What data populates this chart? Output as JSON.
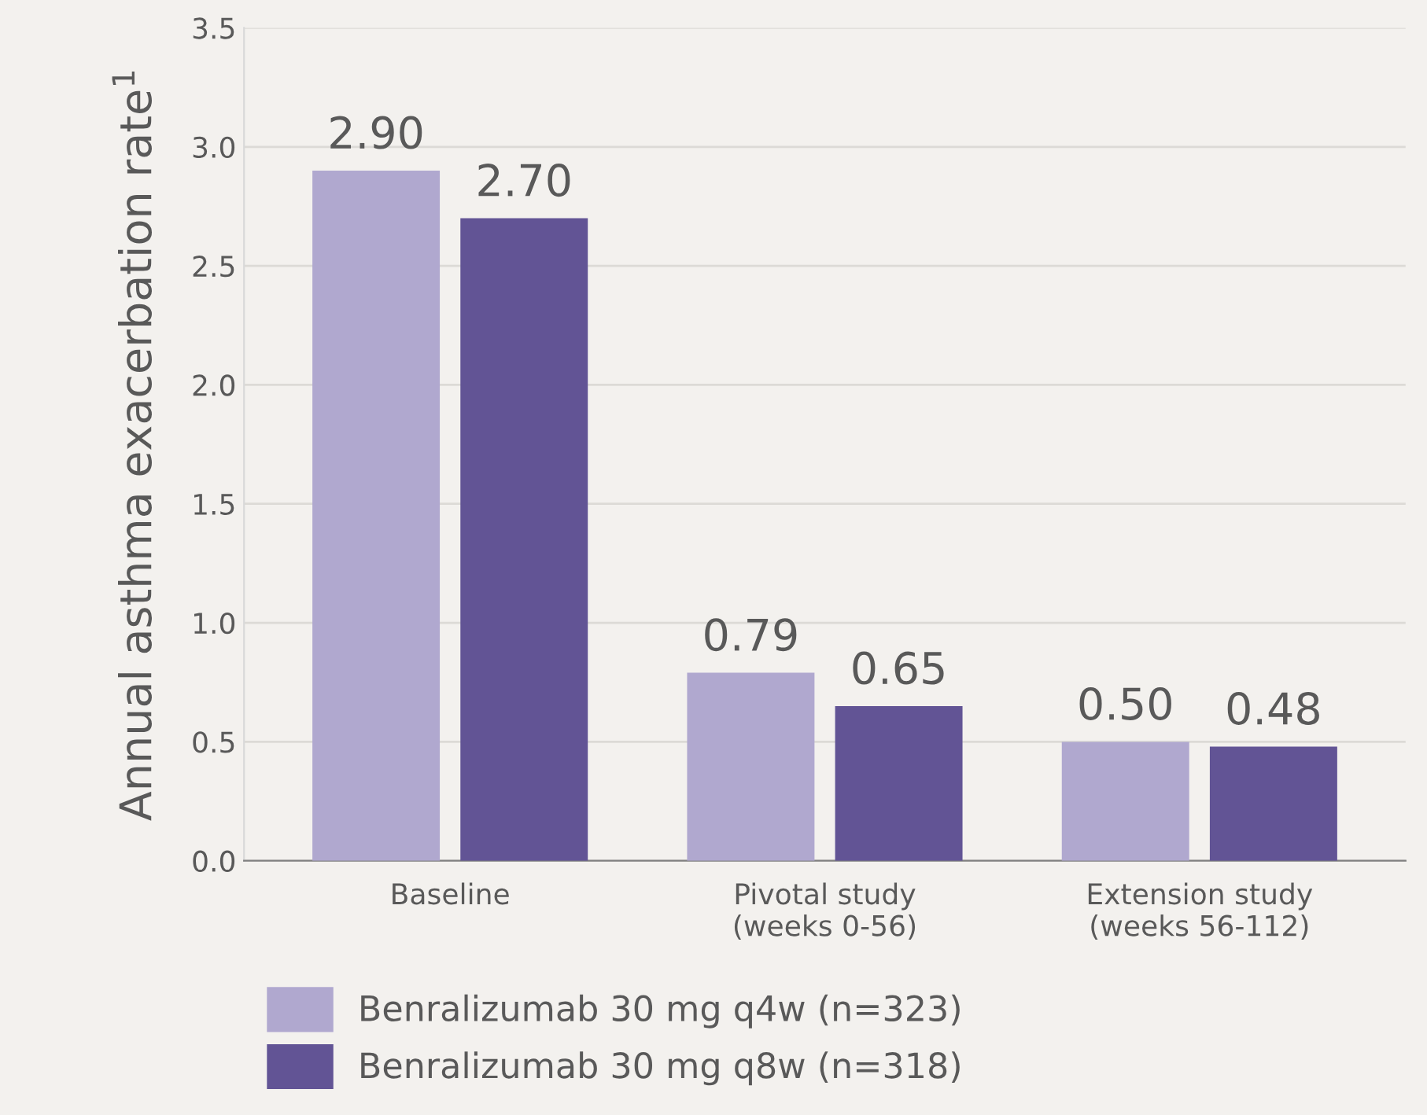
{
  "chart_data": {
    "type": "bar",
    "ylabel": "Annual asthma exacerbation rate$^{1}$",
    "categories": [
      "Baseline",
      "Pivotal study\n(weeks 0-56)",
      "Extension study\n(weeks 56-112)"
    ],
    "series": [
      {
        "name": "Benralizumab 30 mg q4w (n=323)",
        "color": "#b0a8cf",
        "values": [
          2.9,
          0.79,
          0.5
        ]
      },
      {
        "name": "Benralizumab 30 mg q8w (n=318)",
        "color": "#625495",
        "values": [
          2.7,
          0.65,
          0.48
        ]
      }
    ],
    "value_labels": [
      [
        "2.90",
        "0.79",
        "0.50"
      ],
      [
        "2.70",
        "0.65",
        "0.48"
      ]
    ],
    "ylim": [
      0,
      3.5
    ],
    "yticks": [
      {
        "value": 0,
        "label": "0.0"
      },
      {
        "value": 0.5,
        "label": "0.5"
      },
      {
        "value": 1,
        "label": "1.0"
      },
      {
        "value": 1.5,
        "label": "1.5"
      },
      {
        "value": 2,
        "label": "2.0"
      },
      {
        "value": 2.5,
        "label": "2.5"
      },
      {
        "value": 3,
        "label": "3.0"
      },
      {
        "value": 3.5,
        "label": "3.5"
      }
    ],
    "grid": "y",
    "legend": "bottom"
  }
}
